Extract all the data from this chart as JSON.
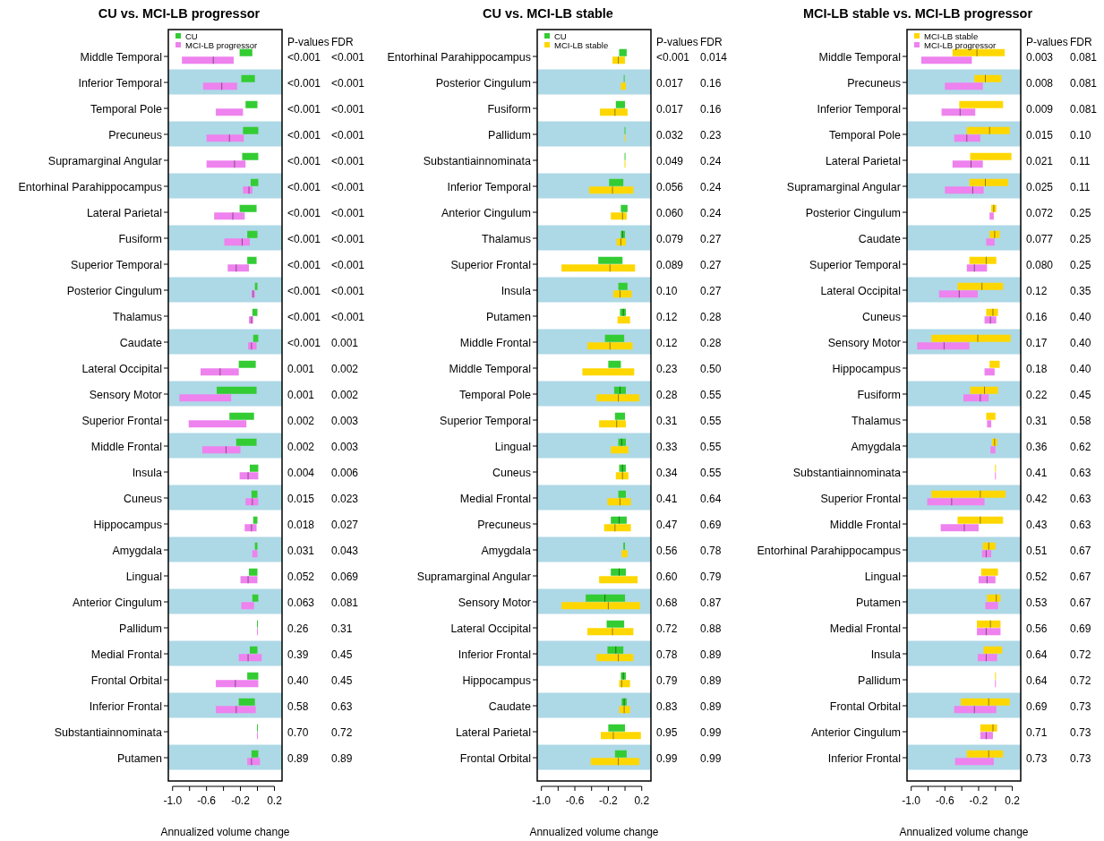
{
  "chart_data": [
    {
      "type": "box",
      "orientation": "horizontal",
      "title": "CU vs. MCI-LB progressor",
      "xlabel": "Annualized volume change",
      "legend": "top left",
      "categories": [
        "Middle Temporal",
        "Inferior Temporal",
        "Temporal Pole",
        "Precuneus",
        "Supramarginal Angular",
        "Entorhinal Parahippocampus",
        "Lateral Parietal",
        "Fusiform",
        "Superior Temporal",
        "Posterior Cingulum",
        "Thalamus",
        "Caudate",
        "Lateral Occipital",
        "Sensory Motor",
        "Superior Frontal",
        "Middle Frontal",
        "Insula",
        "Cuneus",
        "Hippocampus",
        "Amygdala",
        "Lingual",
        "Anterior Cingulum",
        "Pallidum",
        "Medial Frontal",
        "Frontal Orbital",
        "Inferior Frontal",
        "Substantiainnominata",
        "Putamen"
      ],
      "xlim": [
        -1.05,
        0.29
      ],
      "xticks": [
        {
          "value": -1.0,
          "label": "-1.0"
        },
        {
          "value": -0.8,
          "label": null
        },
        {
          "value": -0.6,
          "label": "-0.6"
        },
        {
          "value": -0.4,
          "label": null
        },
        {
          "value": -0.2,
          "label": "-0.2"
        },
        {
          "value": 0.0,
          "label": null
        },
        {
          "value": 0.2,
          "label": "0.2"
        }
      ],
      "bands": [
        {
          "axis": "y",
          "from": "Inferior Temporal",
          "to": "Inferior Temporal",
          "color": "#add8e6"
        },
        {
          "axis": "y",
          "from": "Precuneus",
          "to": "Precuneus",
          "color": "#add8e6"
        },
        {
          "axis": "y",
          "from": "Entorhinal Parahippocampus",
          "to": "Entorhinal Parahippocampus",
          "color": "#add8e6"
        },
        {
          "axis": "y",
          "from": "Fusiform",
          "to": "Fusiform",
          "color": "#add8e6"
        },
        {
          "axis": "y",
          "from": "Posterior Cingulum",
          "to": "Posterior Cingulum",
          "color": "#add8e6"
        },
        {
          "axis": "y",
          "from": "Caudate",
          "to": "Caudate",
          "color": "#add8e6"
        },
        {
          "axis": "y",
          "from": "Sensory Motor",
          "to": "Sensory Motor",
          "color": "#add8e6"
        },
        {
          "axis": "y",
          "from": "Middle Frontal",
          "to": "Middle Frontal",
          "color": "#add8e6"
        },
        {
          "axis": "y",
          "from": "Cuneus",
          "to": "Cuneus",
          "color": "#add8e6"
        },
        {
          "axis": "y",
          "from": "Amygdala",
          "to": "Amygdala",
          "color": "#add8e6"
        },
        {
          "axis": "y",
          "from": "Anterior Cingulum",
          "to": "Anterior Cingulum",
          "color": "#add8e6"
        },
        {
          "axis": "y",
          "from": "Medial Frontal",
          "to": "Medial Frontal",
          "color": "#add8e6"
        },
        {
          "axis": "y",
          "from": "Inferior Frontal",
          "to": "Inferior Frontal",
          "color": "#add8e6"
        },
        {
          "axis": "y",
          "from": "Putamen",
          "to": "Putamen",
          "color": "#add8e6"
        }
      ],
      "series": [
        {
          "name": "CU",
          "color": "#33cc33",
          "boxes": [
            {
              "low": -0.21,
              "q1": -0.21,
              "q3": -0.06,
              "high": -0.06
            },
            {
              "low": -0.19,
              "q1": -0.19,
              "q3": -0.03,
              "high": -0.03
            },
            {
              "low": -0.14,
              "q1": -0.14,
              "q3": 0.0,
              "high": 0.0
            },
            {
              "low": -0.17,
              "q1": -0.17,
              "q3": 0.01,
              "high": 0.01
            },
            {
              "low": -0.18,
              "q1": -0.18,
              "q3": 0.01,
              "high": 0.01
            },
            {
              "low": -0.08,
              "q1": -0.08,
              "q3": 0.01,
              "high": 0.01
            },
            {
              "low": -0.21,
              "q1": -0.21,
              "q3": -0.01,
              "high": -0.01
            },
            {
              "low": -0.12,
              "q1": -0.12,
              "q3": 0.0,
              "high": 0.0
            },
            {
              "low": -0.12,
              "q1": -0.12,
              "q3": -0.01,
              "high": -0.01
            },
            {
              "low": -0.03,
              "q1": -0.03,
              "q3": 0.0,
              "high": 0.0
            },
            {
              "low": -0.06,
              "q1": -0.06,
              "q3": 0.0,
              "high": 0.0
            },
            {
              "low": -0.05,
              "q1": -0.05,
              "q3": 0.01,
              "high": 0.01
            },
            {
              "low": -0.22,
              "q1": -0.22,
              "q3": -0.02,
              "high": -0.02
            },
            {
              "low": -0.48,
              "q1": -0.48,
              "q3": -0.01,
              "high": -0.01
            },
            {
              "low": -0.33,
              "q1": -0.33,
              "q3": -0.04,
              "high": -0.04
            },
            {
              "low": -0.25,
              "q1": -0.25,
              "q3": -0.01,
              "high": -0.01
            },
            {
              "low": -0.09,
              "q1": -0.09,
              "q3": 0.01,
              "high": 0.01
            },
            {
              "low": -0.07,
              "q1": -0.07,
              "q3": 0.0,
              "high": 0.0
            },
            {
              "low": -0.05,
              "q1": -0.05,
              "q3": 0.0,
              "high": 0.0
            },
            {
              "low": -0.03,
              "q1": -0.03,
              "q3": 0.0,
              "high": 0.0
            },
            {
              "low": -0.1,
              "q1": -0.1,
              "q3": 0.0,
              "high": 0.0
            },
            {
              "low": -0.06,
              "q1": -0.06,
              "q3": 0.01,
              "high": 0.01
            },
            {
              "low": 0.0,
              "q1": 0.0,
              "q3": 0.0,
              "high": 0.0
            },
            {
              "low": -0.09,
              "q1": -0.09,
              "q3": 0.0,
              "high": 0.0
            },
            {
              "low": -0.12,
              "q1": -0.12,
              "q3": 0.01,
              "high": 0.01
            },
            {
              "low": -0.22,
              "q1": -0.22,
              "q3": -0.03,
              "high": -0.03
            },
            {
              "low": 0.0,
              "q1": 0.0,
              "q3": 0.0,
              "high": 0.0
            },
            {
              "low": -0.07,
              "q1": -0.07,
              "q3": 0.01,
              "high": 0.01
            }
          ]
        },
        {
          "name": "MCI-LB progressor",
          "color": "#ee82ee",
          "boxes": [
            {
              "low": -0.89,
              "q1": -0.89,
              "median": -0.52,
              "q3": -0.28,
              "high": -0.28
            },
            {
              "low": -0.64,
              "q1": -0.64,
              "median": -0.42,
              "q3": -0.24,
              "high": -0.24
            },
            {
              "low": -0.49,
              "q1": -0.49,
              "q3": -0.17,
              "high": -0.17
            },
            {
              "low": -0.6,
              "q1": -0.6,
              "median": -0.33,
              "q3": -0.16,
              "high": -0.16
            },
            {
              "low": -0.6,
              "q1": -0.6,
              "median": -0.27,
              "q3": -0.14,
              "high": -0.14
            },
            {
              "low": -0.17,
              "q1": -0.17,
              "median": -0.1,
              "q3": -0.06,
              "high": -0.06
            },
            {
              "low": -0.51,
              "q1": -0.51,
              "median": -0.29,
              "q3": -0.15,
              "high": -0.15
            },
            {
              "low": -0.39,
              "q1": -0.39,
              "median": -0.18,
              "q3": -0.09,
              "high": -0.09
            },
            {
              "low": -0.35,
              "q1": -0.35,
              "median": -0.25,
              "q3": -0.1,
              "high": -0.1
            },
            {
              "low": -0.07,
              "q1": -0.07,
              "median": -0.05,
              "q3": -0.03,
              "high": -0.03
            },
            {
              "low": -0.1,
              "q1": -0.1,
              "median": -0.07,
              "q3": -0.05,
              "high": -0.05
            },
            {
              "low": -0.11,
              "q1": -0.11,
              "median": -0.07,
              "q3": -0.01,
              "high": -0.01
            },
            {
              "low": -0.67,
              "q1": -0.67,
              "median": -0.44,
              "q3": -0.22,
              "high": -0.22
            },
            {
              "low": -0.92,
              "q1": -0.92,
              "q3": -0.31,
              "high": -0.31
            },
            {
              "low": -0.81,
              "q1": -0.81,
              "q3": -0.13,
              "high": -0.13
            },
            {
              "low": -0.65,
              "q1": -0.65,
              "median": -0.37,
              "q3": -0.2,
              "high": -0.2
            },
            {
              "low": -0.21,
              "q1": -0.21,
              "median": -0.11,
              "q3": 0.01,
              "high": 0.01
            },
            {
              "low": -0.14,
              "q1": -0.14,
              "median": -0.06,
              "q3": 0.01,
              "high": 0.01
            },
            {
              "low": -0.15,
              "q1": -0.15,
              "median": -0.07,
              "q3": -0.01,
              "high": -0.01
            },
            {
              "low": -0.06,
              "q1": -0.06,
              "q3": 0.0,
              "high": 0.0
            },
            {
              "low": -0.2,
              "q1": -0.2,
              "median": -0.11,
              "q3": 0.0,
              "high": 0.0
            },
            {
              "low": -0.19,
              "q1": -0.19,
              "q3": -0.04,
              "high": -0.04
            },
            {
              "low": 0.0,
              "q1": 0.0,
              "q3": 0.0,
              "high": 0.0
            },
            {
              "low": -0.22,
              "q1": -0.22,
              "median": -0.11,
              "q3": 0.05,
              "high": 0.05
            },
            {
              "low": -0.49,
              "q1": -0.49,
              "median": -0.26,
              "q3": 0.01,
              "high": 0.01
            },
            {
              "low": -0.49,
              "q1": -0.49,
              "median": -0.25,
              "q3": -0.02,
              "high": -0.02
            },
            {
              "low": 0.0,
              "q1": 0.0,
              "q3": 0.0,
              "high": 0.0
            },
            {
              "low": -0.12,
              "q1": -0.12,
              "median": -0.07,
              "q3": 0.03,
              "high": 0.03
            }
          ]
        }
      ],
      "annotations": [
        "P-values",
        "FDR",
        "<0.001",
        "<0.001",
        "<0.001",
        "<0.001",
        "<0.001",
        "<0.001",
        "<0.001",
        "<0.001",
        "<0.001",
        "<0.001",
        "<0.001",
        "<0.001",
        "<0.001",
        "<0.001",
        "<0.001",
        "<0.001",
        "<0.001",
        "<0.001",
        "<0.001",
        "<0.001",
        "<0.001",
        "<0.001",
        "<0.001",
        "0.001",
        "0.001",
        "0.002",
        "0.001",
        "0.002",
        "0.002",
        "0.003",
        "0.002",
        "0.003",
        "0.004",
        "0.006",
        "0.015",
        "0.023",
        "0.018",
        "0.027",
        "0.031",
        "0.043",
        "0.052",
        "0.069",
        "0.063",
        "0.081",
        "0.26",
        "0.31",
        "0.39",
        "0.45",
        "0.40",
        "0.45",
        "0.58",
        "0.63",
        "0.70",
        "0.72",
        "0.89",
        "0.89"
      ]
    },
    {
      "type": "box",
      "orientation": "horizontal",
      "title": "CU vs. MCI-LB stable",
      "xlabel": "Annualized volume change",
      "legend": "top left",
      "categories": [
        "Entorhinal Parahippocampus",
        "Posterior Cingulum",
        "Fusiform",
        "Pallidum",
        "Substantiainnominata",
        "Inferior Temporal",
        "Anterior Cingulum",
        "Thalamus",
        "Superior Frontal",
        "Insula",
        "Putamen",
        "Middle Frontal",
        "Middle Temporal",
        "Temporal Pole",
        "Superior Temporal",
        "Lingual",
        "Cuneus",
        "Medial Frontal",
        "Precuneus",
        "Amygdala",
        "Supramarginal Angular",
        "Sensory Motor",
        "Lateral Occipital",
        "Inferior Frontal",
        "Hippocampus",
        "Caudate",
        "Lateral Parietal",
        "Frontal Orbital"
      ],
      "xlim": [
        -1.05,
        0.31
      ],
      "xticks": [
        {
          "value": -1.0,
          "label": "-1.0"
        },
        {
          "value": -0.8,
          "label": null
        },
        {
          "value": -0.6,
          "label": "-0.6"
        },
        {
          "value": -0.4,
          "label": null
        },
        {
          "value": -0.2,
          "label": "-0.2"
        },
        {
          "value": 0.0,
          "label": null
        },
        {
          "value": 0.2,
          "label": "0.2"
        }
      ],
      "bands": [
        {
          "axis": "y",
          "from": "Posterior Cingulum",
          "to": "Posterior Cingulum",
          "color": "#add8e6"
        },
        {
          "axis": "y",
          "from": "Pallidum",
          "to": "Pallidum",
          "color": "#add8e6"
        },
        {
          "axis": "y",
          "from": "Inferior Temporal",
          "to": "Inferior Temporal",
          "color": "#add8e6"
        },
        {
          "axis": "y",
          "from": "Thalamus",
          "to": "Thalamus",
          "color": "#add8e6"
        },
        {
          "axis": "y",
          "from": "Insula",
          "to": "Insula",
          "color": "#add8e6"
        },
        {
          "axis": "y",
          "from": "Middle Frontal",
          "to": "Middle Frontal",
          "color": "#add8e6"
        },
        {
          "axis": "y",
          "from": "Temporal Pole",
          "to": "Temporal Pole",
          "color": "#add8e6"
        },
        {
          "axis": "y",
          "from": "Lingual",
          "to": "Lingual",
          "color": "#add8e6"
        },
        {
          "axis": "y",
          "from": "Medial Frontal",
          "to": "Medial Frontal",
          "color": "#add8e6"
        },
        {
          "axis": "y",
          "from": "Amygdala",
          "to": "Amygdala",
          "color": "#add8e6"
        },
        {
          "axis": "y",
          "from": "Sensory Motor",
          "to": "Sensory Motor",
          "color": "#add8e6"
        },
        {
          "axis": "y",
          "from": "Inferior Frontal",
          "to": "Inferior Frontal",
          "color": "#add8e6"
        },
        {
          "axis": "y",
          "from": "Caudate",
          "to": "Caudate",
          "color": "#add8e6"
        },
        {
          "axis": "y",
          "from": "Frontal Orbital",
          "to": "Frontal Orbital",
          "color": "#add8e6"
        }
      ],
      "series": [
        {
          "name": "CU",
          "color": "#33cc33",
          "boxes": [
            {
              "low": -0.07,
              "q1": -0.07,
              "q3": 0.02,
              "high": 0.02
            },
            {
              "low": -0.01,
              "q1": -0.01,
              "q3": 0.0,
              "high": 0.0
            },
            {
              "low": -0.11,
              "q1": -0.11,
              "q3": 0.0,
              "high": 0.0
            },
            {
              "low": 0.0,
              "q1": 0.0,
              "q3": 0.0,
              "high": 0.0
            },
            {
              "low": 0.0,
              "q1": 0.0,
              "q3": 0.0,
              "high": 0.0
            },
            {
              "low": -0.19,
              "q1": -0.19,
              "q3": -0.02,
              "high": -0.02
            },
            {
              "low": -0.05,
              "q1": -0.05,
              "q3": 0.03,
              "high": 0.03
            },
            {
              "low": -0.05,
              "q1": -0.05,
              "median": -0.03,
              "q3": 0.0,
              "high": 0.0
            },
            {
              "low": -0.32,
              "q1": -0.32,
              "q3": -0.03,
              "high": -0.03
            },
            {
              "low": -0.08,
              "q1": -0.08,
              "q3": 0.03,
              "high": 0.03
            },
            {
              "low": -0.06,
              "q1": -0.06,
              "median": -0.02,
              "q3": 0.01,
              "high": 0.01
            },
            {
              "low": -0.24,
              "q1": -0.24,
              "q3": -0.01,
              "high": -0.01
            },
            {
              "low": -0.2,
              "q1": -0.2,
              "q3": -0.05,
              "high": -0.05
            },
            {
              "low": -0.13,
              "q1": -0.13,
              "median": -0.06,
              "q3": 0.01,
              "high": 0.01
            },
            {
              "low": -0.12,
              "q1": -0.12,
              "q3": 0.0,
              "high": 0.0
            },
            {
              "low": -0.08,
              "q1": -0.08,
              "median": -0.04,
              "q3": 0.01,
              "high": 0.01
            },
            {
              "low": -0.07,
              "q1": -0.07,
              "median": -0.03,
              "q3": 0.01,
              "high": 0.01
            },
            {
              "low": -0.08,
              "q1": -0.08,
              "q3": 0.01,
              "high": 0.01
            },
            {
              "low": -0.17,
              "q1": -0.17,
              "median": -0.07,
              "q3": 0.02,
              "high": 0.02
            },
            {
              "low": -0.02,
              "q1": -0.02,
              "q3": 0.0,
              "high": 0.0
            },
            {
              "low": -0.17,
              "q1": -0.17,
              "median": -0.07,
              "q3": 0.01,
              "high": 0.01
            },
            {
              "low": -0.47,
              "q1": -0.47,
              "median": -0.24,
              "q3": 0.0,
              "high": 0.0
            },
            {
              "low": -0.22,
              "q1": -0.22,
              "q3": -0.01,
              "high": -0.01
            },
            {
              "low": -0.21,
              "q1": -0.21,
              "median": -0.11,
              "q3": -0.02,
              "high": -0.02
            },
            {
              "low": -0.05,
              "q1": -0.05,
              "median": -0.02,
              "q3": 0.01,
              "high": 0.01
            },
            {
              "low": -0.04,
              "q1": -0.04,
              "median": -0.01,
              "q3": 0.02,
              "high": 0.02
            },
            {
              "low": -0.2,
              "q1": -0.2,
              "q3": 0.0,
              "high": 0.0
            },
            {
              "low": -0.12,
              "q1": -0.12,
              "q3": 0.02,
              "high": 0.02
            }
          ]
        },
        {
          "name": "MCI-LB stable",
          "color": "#ffd700",
          "boxes": [
            {
              "low": -0.15,
              "q1": -0.15,
              "median": -0.08,
              "q3": 0.0,
              "high": 0.0
            },
            {
              "low": -0.05,
              "q1": -0.05,
              "q3": 0.01,
              "high": 0.01
            },
            {
              "low": -0.3,
              "q1": -0.3,
              "median": -0.12,
              "q3": 0.03,
              "high": 0.03
            },
            {
              "low": 0.0,
              "q1": 0.0,
              "q3": 0.0,
              "high": 0.0
            },
            {
              "low": 0.0,
              "q1": 0.0,
              "q3": 0.0,
              "high": 0.0
            },
            {
              "low": -0.43,
              "q1": -0.43,
              "median": -0.15,
              "q3": 0.1,
              "high": 0.1
            },
            {
              "low": -0.17,
              "q1": -0.17,
              "median": -0.03,
              "q3": 0.02,
              "high": 0.02
            },
            {
              "low": -0.1,
              "q1": -0.1,
              "median": -0.05,
              "q3": 0.01,
              "high": 0.01
            },
            {
              "low": -0.76,
              "q1": -0.76,
              "median": -0.18,
              "q3": 0.12,
              "high": 0.12
            },
            {
              "low": -0.14,
              "q1": -0.14,
              "median": -0.06,
              "q3": 0.08,
              "high": 0.08
            },
            {
              "low": -0.09,
              "q1": -0.09,
              "q3": 0.06,
              "high": 0.06
            },
            {
              "low": -0.45,
              "q1": -0.45,
              "median": -0.18,
              "q3": 0.09,
              "high": 0.09
            },
            {
              "low": -0.51,
              "q1": -0.51,
              "q3": 0.11,
              "high": 0.11
            },
            {
              "low": -0.34,
              "q1": -0.34,
              "median": -0.08,
              "q3": 0.17,
              "high": 0.17
            },
            {
              "low": -0.31,
              "q1": -0.31,
              "median": -0.1,
              "q3": 0.01,
              "high": 0.01
            },
            {
              "low": -0.17,
              "q1": -0.17,
              "q3": 0.04,
              "high": 0.04
            },
            {
              "low": -0.11,
              "q1": -0.11,
              "median": -0.03,
              "q3": 0.04,
              "high": 0.04
            },
            {
              "low": -0.21,
              "q1": -0.21,
              "median": -0.06,
              "q3": 0.07,
              "high": 0.07
            },
            {
              "low": -0.25,
              "q1": -0.25,
              "median": -0.12,
              "q3": 0.07,
              "high": 0.07
            },
            {
              "low": -0.04,
              "q1": -0.04,
              "q3": 0.03,
              "high": 0.03
            },
            {
              "low": -0.31,
              "q1": -0.31,
              "q3": 0.15,
              "high": 0.15
            },
            {
              "low": -0.76,
              "q1": -0.76,
              "median": -0.2,
              "q3": 0.18,
              "high": 0.18
            },
            {
              "low": -0.45,
              "q1": -0.45,
              "median": -0.15,
              "q3": 0.1,
              "high": 0.1
            },
            {
              "low": -0.34,
              "q1": -0.34,
              "median": -0.08,
              "q3": 0.1,
              "high": 0.1
            },
            {
              "low": -0.07,
              "q1": -0.07,
              "median": -0.04,
              "q3": 0.06,
              "high": 0.06
            },
            {
              "low": -0.07,
              "q1": -0.07,
              "median": -0.01,
              "q3": 0.06,
              "high": 0.06
            },
            {
              "low": -0.29,
              "q1": -0.29,
              "median": -0.14,
              "q3": 0.19,
              "high": 0.19
            },
            {
              "low": -0.41,
              "q1": -0.41,
              "median": -0.08,
              "q3": 0.17,
              "high": 0.17
            }
          ]
        }
      ],
      "annotations": [
        "P-values",
        "FDR",
        "<0.001",
        "0.014",
        "0.017",
        "0.16",
        "0.017",
        "0.16",
        "0.032",
        "0.23",
        "0.049",
        "0.24",
        "0.056",
        "0.24",
        "0.060",
        "0.24",
        "0.079",
        "0.27",
        "0.089",
        "0.27",
        "0.10",
        "0.27",
        "0.12",
        "0.28",
        "0.12",
        "0.28",
        "0.23",
        "0.50",
        "0.28",
        "0.55",
        "0.31",
        "0.55",
        "0.33",
        "0.55",
        "0.34",
        "0.55",
        "0.41",
        "0.64",
        "0.47",
        "0.69",
        "0.56",
        "0.78",
        "0.60",
        "0.79",
        "0.68",
        "0.87",
        "0.72",
        "0.88",
        "0.78",
        "0.89",
        "0.79",
        "0.89",
        "0.83",
        "0.89",
        "0.95",
        "0.99",
        "0.99",
        "0.99"
      ]
    },
    {
      "type": "box",
      "orientation": "horizontal",
      "title": "MCI-LB stable vs. MCI-LB progressor",
      "xlabel": "Annualized volume change",
      "legend": "top left",
      "categories": [
        "Middle Temporal",
        "Precuneus",
        "Inferior Temporal",
        "Temporal Pole",
        "Lateral Parietal",
        "Supramarginal Angular",
        "Posterior Cingulum",
        "Caudate",
        "Superior Temporal",
        "Lateral Occipital",
        "Cuneus",
        "Sensory Motor",
        "Hippocampus",
        "Fusiform",
        "Thalamus",
        "Amygdala",
        "Substantiainnominata",
        "Superior Frontal",
        "Middle Frontal",
        "Entorhinal Parahippocampus",
        "Lingual",
        "Putamen",
        "Medial Frontal",
        "Insula",
        "Pallidum",
        "Frontal Orbital",
        "Anterior Cingulum",
        "Inferior Frontal"
      ],
      "xlim": [
        -1.05,
        0.3
      ],
      "xticks": [
        {
          "value": -1.0,
          "label": "-1.0"
        },
        {
          "value": -0.8,
          "label": null
        },
        {
          "value": -0.6,
          "label": "-0.6"
        },
        {
          "value": -0.4,
          "label": null
        },
        {
          "value": -0.2,
          "label": "-0.2"
        },
        {
          "value": 0.0,
          "label": null
        },
        {
          "value": 0.2,
          "label": "0.2"
        }
      ],
      "bands": [
        {
          "axis": "y",
          "from": "Precuneus",
          "to": "Precuneus",
          "color": "#add8e6"
        },
        {
          "axis": "y",
          "from": "Temporal Pole",
          "to": "Temporal Pole",
          "color": "#add8e6"
        },
        {
          "axis": "y",
          "from": "Supramarginal Angular",
          "to": "Supramarginal Angular",
          "color": "#add8e6"
        },
        {
          "axis": "y",
          "from": "Caudate",
          "to": "Caudate",
          "color": "#add8e6"
        },
        {
          "axis": "y",
          "from": "Lateral Occipital",
          "to": "Lateral Occipital",
          "color": "#add8e6"
        },
        {
          "axis": "y",
          "from": "Sensory Motor",
          "to": "Sensory Motor",
          "color": "#add8e6"
        },
        {
          "axis": "y",
          "from": "Fusiform",
          "to": "Fusiform",
          "color": "#add8e6"
        },
        {
          "axis": "y",
          "from": "Amygdala",
          "to": "Amygdala",
          "color": "#add8e6"
        },
        {
          "axis": "y",
          "from": "Superior Frontal",
          "to": "Superior Frontal",
          "color": "#add8e6"
        },
        {
          "axis": "y",
          "from": "Entorhinal Parahippocampus",
          "to": "Entorhinal Parahippocampus",
          "color": "#add8e6"
        },
        {
          "axis": "y",
          "from": "Putamen",
          "to": "Putamen",
          "color": "#add8e6"
        },
        {
          "axis": "y",
          "from": "Insula",
          "to": "Insula",
          "color": "#add8e6"
        },
        {
          "axis": "y",
          "from": "Frontal Orbital",
          "to": "Frontal Orbital",
          "color": "#add8e6"
        },
        {
          "axis": "y",
          "from": "Inferior Frontal",
          "to": "Inferior Frontal",
          "color": "#add8e6"
        }
      ],
      "series": [
        {
          "name": "MCI-LB stable",
          "color": "#ffd700",
          "boxes": [
            {
              "low": -0.51,
              "q1": -0.51,
              "median": -0.22,
              "q3": 0.11,
              "high": 0.11
            },
            {
              "low": -0.25,
              "q1": -0.25,
              "median": -0.12,
              "q3": 0.07,
              "high": 0.07
            },
            {
              "low": -0.43,
              "q1": -0.43,
              "q3": 0.09,
              "high": 0.09
            },
            {
              "low": -0.34,
              "q1": -0.34,
              "median": -0.07,
              "q3": 0.17,
              "high": 0.17
            },
            {
              "low": -0.3,
              "q1": -0.3,
              "q3": 0.19,
              "high": 0.19
            },
            {
              "low": -0.31,
              "q1": -0.31,
              "median": -0.12,
              "q3": 0.15,
              "high": 0.15
            },
            {
              "low": -0.05,
              "q1": -0.05,
              "median": -0.02,
              "q3": 0.01,
              "high": 0.01
            },
            {
              "low": -0.07,
              "q1": -0.07,
              "median": -0.01,
              "q3": 0.05,
              "high": 0.05
            },
            {
              "low": -0.31,
              "q1": -0.31,
              "median": -0.11,
              "q3": 0.01,
              "high": 0.01
            },
            {
              "low": -0.45,
              "q1": -0.45,
              "median": -0.16,
              "q3": 0.09,
              "high": 0.09
            },
            {
              "low": -0.11,
              "q1": -0.11,
              "median": -0.03,
              "q3": 0.03,
              "high": 0.03
            },
            {
              "low": -0.76,
              "q1": -0.76,
              "median": -0.21,
              "q3": 0.18,
              "high": 0.18
            },
            {
              "low": -0.07,
              "q1": -0.07,
              "q3": 0.05,
              "high": 0.05
            },
            {
              "low": -0.3,
              "q1": -0.3,
              "median": -0.13,
              "q3": 0.03,
              "high": 0.03
            },
            {
              "low": -0.11,
              "q1": -0.11,
              "q3": 0.0,
              "high": 0.0
            },
            {
              "low": -0.04,
              "q1": -0.04,
              "median": -0.01,
              "q3": 0.02,
              "high": 0.02
            },
            {
              "low": 0.0,
              "q1": 0.0,
              "q3": 0.0,
              "high": 0.0
            },
            {
              "low": -0.76,
              "q1": -0.76,
              "median": -0.18,
              "q3": 0.12,
              "high": 0.12
            },
            {
              "low": -0.45,
              "q1": -0.45,
              "median": -0.18,
              "q3": 0.09,
              "high": 0.09
            },
            {
              "low": -0.15,
              "q1": -0.15,
              "median": -0.08,
              "q3": 0.0,
              "high": 0.0
            },
            {
              "low": -0.17,
              "q1": -0.17,
              "q3": 0.03,
              "high": 0.03
            },
            {
              "low": -0.1,
              "q1": -0.1,
              "median": 0.01,
              "q3": 0.06,
              "high": 0.06
            },
            {
              "low": -0.22,
              "q1": -0.22,
              "median": -0.06,
              "q3": 0.06,
              "high": 0.06
            },
            {
              "low": -0.14,
              "q1": -0.14,
              "q3": 0.08,
              "high": 0.08
            },
            {
              "low": 0.0,
              "q1": 0.0,
              "q3": 0.0,
              "high": 0.0
            },
            {
              "low": -0.41,
              "q1": -0.41,
              "median": -0.08,
              "q3": 0.17,
              "high": 0.17
            },
            {
              "low": -0.18,
              "q1": -0.18,
              "median": -0.03,
              "q3": 0.02,
              "high": 0.02
            },
            {
              "low": -0.34,
              "q1": -0.34,
              "median": -0.08,
              "q3": 0.09,
              "high": 0.09
            }
          ]
        },
        {
          "name": "MCI-LB progressor",
          "color": "#ee82ee",
          "boxes": [
            {
              "low": -0.88,
              "q1": -0.88,
              "q3": -0.28,
              "high": -0.28
            },
            {
              "low": -0.6,
              "q1": -0.6,
              "q3": -0.15,
              "high": -0.15
            },
            {
              "low": -0.64,
              "q1": -0.64,
              "median": -0.42,
              "q3": -0.24,
              "high": -0.24
            },
            {
              "low": -0.49,
              "q1": -0.49,
              "median": -0.34,
              "q3": -0.18,
              "high": -0.18
            },
            {
              "low": -0.51,
              "q1": -0.51,
              "median": -0.29,
              "q3": -0.15,
              "high": -0.15
            },
            {
              "low": -0.6,
              "q1": -0.6,
              "median": -0.27,
              "q3": -0.14,
              "high": -0.14
            },
            {
              "low": -0.07,
              "q1": -0.07,
              "q3": -0.02,
              "high": -0.02
            },
            {
              "low": -0.11,
              "q1": -0.11,
              "q3": -0.01,
              "high": -0.01
            },
            {
              "low": -0.34,
              "q1": -0.34,
              "median": -0.25,
              "q3": -0.1,
              "high": -0.1
            },
            {
              "low": -0.67,
              "q1": -0.67,
              "median": -0.43,
              "q3": -0.21,
              "high": -0.21
            },
            {
              "low": -0.13,
              "q1": -0.13,
              "median": -0.06,
              "q3": 0.01,
              "high": 0.01
            },
            {
              "low": -0.93,
              "q1": -0.93,
              "median": -0.61,
              "q3": -0.31,
              "high": -0.31
            },
            {
              "low": -0.13,
              "q1": -0.13,
              "q3": -0.01,
              "high": -0.01
            },
            {
              "low": -0.38,
              "q1": -0.38,
              "median": -0.18,
              "q3": -0.08,
              "high": -0.08
            },
            {
              "low": -0.1,
              "q1": -0.1,
              "q3": -0.05,
              "high": -0.05
            },
            {
              "low": -0.06,
              "q1": -0.06,
              "q3": 0.0,
              "high": 0.0
            },
            {
              "low": 0.0,
              "q1": 0.0,
              "q3": 0.0,
              "high": 0.0
            },
            {
              "low": -0.81,
              "q1": -0.81,
              "median": -0.52,
              "q3": -0.13,
              "high": -0.13
            },
            {
              "low": -0.65,
              "q1": -0.65,
              "median": -0.37,
              "q3": -0.2,
              "high": -0.2
            },
            {
              "low": -0.16,
              "q1": -0.16,
              "median": -0.11,
              "q3": -0.05,
              "high": -0.05
            },
            {
              "low": -0.2,
              "q1": -0.2,
              "median": -0.1,
              "q3": 0.0,
              "high": 0.0
            },
            {
              "low": -0.12,
              "q1": -0.12,
              "q3": 0.03,
              "high": 0.03
            },
            {
              "low": -0.22,
              "q1": -0.22,
              "median": -0.11,
              "q3": 0.06,
              "high": 0.06
            },
            {
              "low": -0.21,
              "q1": -0.21,
              "median": -0.11,
              "q3": 0.02,
              "high": 0.02
            },
            {
              "low": 0.0,
              "q1": 0.0,
              "q3": 0.0,
              "high": 0.0
            },
            {
              "low": -0.49,
              "q1": -0.49,
              "median": -0.25,
              "q3": 0.01,
              "high": 0.01
            },
            {
              "low": -0.18,
              "q1": -0.18,
              "median": -0.11,
              "q3": -0.03,
              "high": -0.03
            },
            {
              "low": -0.48,
              "q1": -0.48,
              "q3": -0.02,
              "high": -0.02
            }
          ]
        }
      ],
      "annotations": [
        "P-values",
        "FDR",
        "0.003",
        "0.081",
        "0.008",
        "0.081",
        "0.009",
        "0.081",
        "0.015",
        "0.10",
        "0.021",
        "0.11",
        "0.025",
        "0.11",
        "0.072",
        "0.25",
        "0.077",
        "0.25",
        "0.080",
        "0.25",
        "0.12",
        "0.35",
        "0.16",
        "0.40",
        "0.17",
        "0.40",
        "0.18",
        "0.40",
        "0.22",
        "0.45",
        "0.31",
        "0.58",
        "0.36",
        "0.62",
        "0.41",
        "0.63",
        "0.42",
        "0.63",
        "0.43",
        "0.63",
        "0.51",
        "0.67",
        "0.52",
        "0.67",
        "0.53",
        "0.67",
        "0.56",
        "0.69",
        "0.64",
        "0.72",
        "0.64",
        "0.72",
        "0.69",
        "0.73",
        "0.71",
        "0.73",
        "0.73",
        "0.73"
      ]
    }
  ]
}
